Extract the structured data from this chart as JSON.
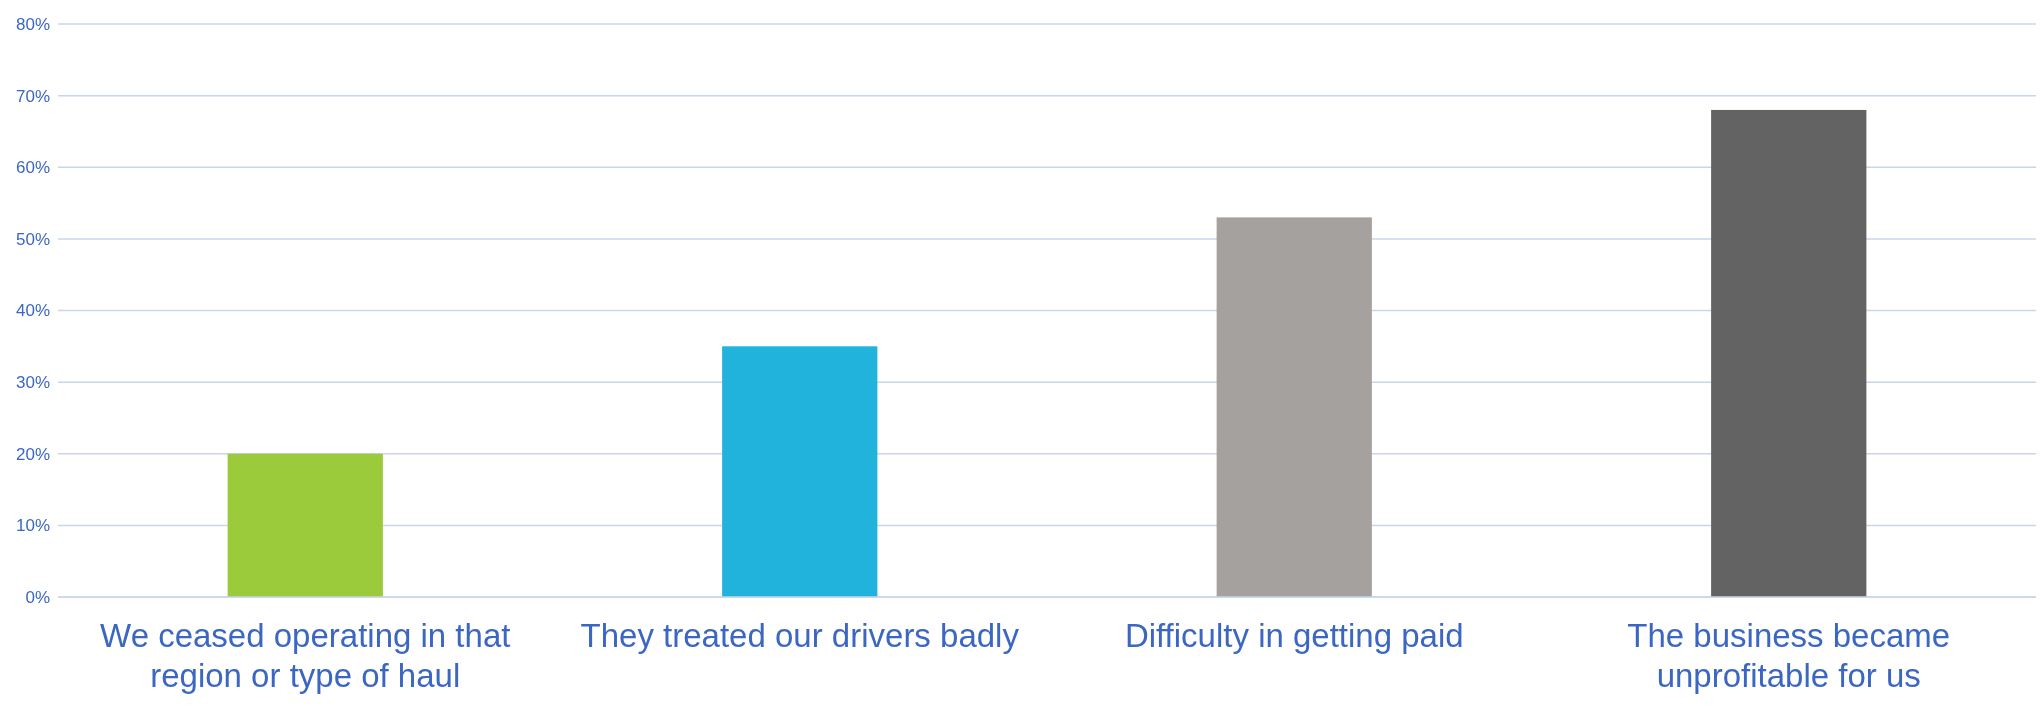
{
  "chart_data": {
    "type": "bar",
    "categories": [
      "We ceased operating in that region or type of haul",
      "They treated our drivers badly",
      "Difficulty in getting paid",
      "The business became unprofitable for us"
    ],
    "values": [
      20,
      35,
      53,
      68
    ],
    "colors": [
      "#9bcb3b",
      "#22b3dc",
      "#a5a19f",
      "#636363"
    ],
    "ylim": [
      0,
      80
    ],
    "yticks": [
      {
        "value": 0,
        "label": "0%"
      },
      {
        "value": 10,
        "label": "10%"
      },
      {
        "value": 20,
        "label": "20%"
      },
      {
        "value": 30,
        "label": "30%"
      },
      {
        "value": 40,
        "label": "40%"
      },
      {
        "value": 50,
        "label": "50%"
      },
      {
        "value": 60,
        "label": "60%"
      },
      {
        "value": 70,
        "label": "70%"
      },
      {
        "value": 80,
        "label": "80%"
      }
    ],
    "grid": "y"
  }
}
